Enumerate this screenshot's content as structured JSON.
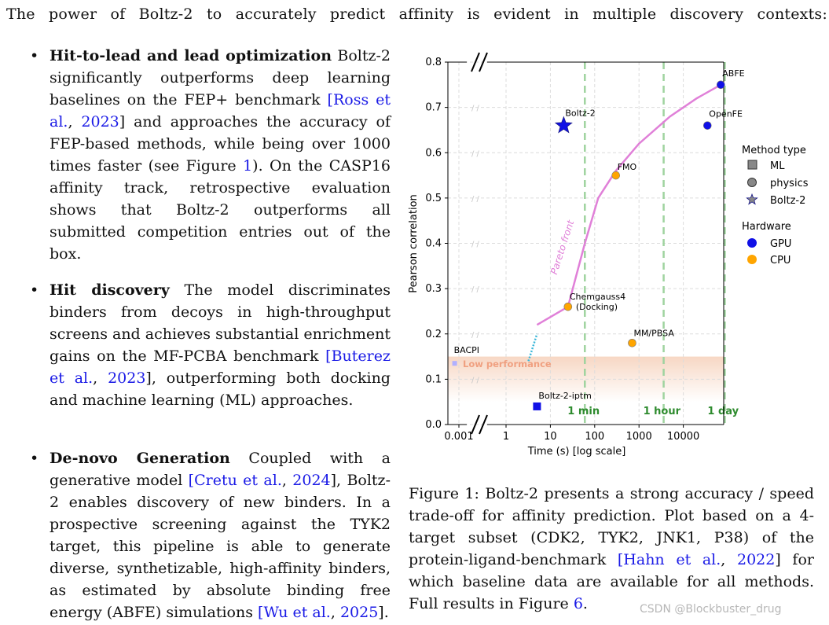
{
  "intro_text": "The power of Boltz-2 to accurately predict affinity is evident in multiple discovery contexts:",
  "bullets": [
    {
      "head": "Hit-to-lead and lead optimization",
      "body_before": " Boltz-2 significantly outperforms deep learning baselines on the FEP+ benchmark ",
      "cite1_open": "[",
      "cite1_author": "Ross et al.",
      "cite1_sep": ", ",
      "cite1_year": "2023",
      "cite1_close": "]",
      "body_mid": " and approaches the accuracy of FEP-based methods, while being over 1000 times faster (see Figure ",
      "fig_ref": "1",
      "body_after": "). On the CASP16 affinity track, retrospective evaluation shows that Boltz-2 outperforms all submitted competition entries out of the box."
    },
    {
      "head": "Hit discovery",
      "body_before": " The model discriminates binders from decoys in high-throughput screens and achieves substantial enrichment gains on the MF-PCBA benchmark ",
      "cite1_open": "[",
      "cite1_author": "Buterez et al.",
      "cite1_sep": ", ",
      "cite1_year": "2023",
      "cite1_close": "]",
      "body_after": ", outperforming both docking and machine learning (ML) approaches."
    },
    {
      "head": "De-novo Generation",
      "body_before": " Coupled with a generative model ",
      "cite1_open": "[",
      "cite1_author": "Cretu et al.",
      "cite1_sep": ", ",
      "cite1_year": "2024",
      "cite1_close": "]",
      "body_mid": ", Boltz-2 enables discovery of new binders.  In a prospective screening against the TYK2 target, this pipeline is able to generate diverse, synthetizable, high-affinity binders, as estimated by absolute binding free energy (ABFE) simulations ",
      "cite2_open": "[",
      "cite2_author": "Wu et al.",
      "cite2_sep": ", ",
      "cite2_year": "2025",
      "cite2_close": "]",
      "body_after": "."
    }
  ],
  "caption": {
    "label": "Figure 1:",
    "text_before": "  Boltz-2 presents a strong accuracy / speed trade-off for affinity prediction. Plot based on a 4-target subset (CDK2, TYK2, JNK1, P38) of the protein-ligand-benchmark ",
    "cite_open": "[",
    "cite_author": "Hahn et al.",
    "cite_sep": ", ",
    "cite_year": "2022",
    "cite_close": "]",
    "text_mid": " for which baseline data are available for all methods. Full results in Figure ",
    "fig_ref": "6",
    "text_after": "."
  },
  "watermark": "CSDN @Blockbuster_drug",
  "chart_data": {
    "type": "scatter",
    "xlabel": "Time (s) [log scale]",
    "ylabel": "Pearson correlation",
    "xscale": "log",
    "xticks": [
      "0.001",
      "1",
      "10",
      "100",
      "1000",
      "10000"
    ],
    "yticks": [
      "0.0",
      "0.1",
      "0.2",
      "0.3",
      "0.4",
      "0.5",
      "0.6",
      "0.7",
      "0.8"
    ],
    "ylim": [
      0,
      0.8
    ],
    "grid": true,
    "axis_break": true,
    "time_markers": [
      {
        "label": "1 min",
        "x": 60
      },
      {
        "label": "1 hour",
        "x": 3600
      },
      {
        "label": "1 day",
        "x": 86400
      }
    ],
    "low_performance": {
      "label": "Low performance",
      "y_max": 0.15
    },
    "pareto_label": "Pareto front",
    "points": [
      {
        "label": "Boltz-2",
        "x": 20,
        "y": 0.66,
        "type": "Boltz-2",
        "hardware": "GPU"
      },
      {
        "label": "ABFE",
        "x": 70000,
        "y": 0.75,
        "type": "physics",
        "hardware": "GPU"
      },
      {
        "label": "OpenFE",
        "x": 35000,
        "y": 0.66,
        "type": "physics",
        "hardware": "GPU"
      },
      {
        "label": "FMO",
        "x": 300,
        "y": 0.55,
        "type": "physics",
        "hardware": "CPU"
      },
      {
        "label": "Chemgauss4",
        "label2": "(Docking)",
        "x": 25,
        "y": 0.26,
        "type": "physics",
        "hardware": "CPU"
      },
      {
        "label": "MM/PBSA",
        "x": 700,
        "y": 0.18,
        "type": "physics",
        "hardware": "CPU"
      },
      {
        "label": "Boltz-2-iptm",
        "x": 5,
        "y": 0.04,
        "type": "ML",
        "hardware": "GPU"
      },
      {
        "label": "BACPI",
        "x": 0.0005,
        "y": 0.135,
        "type": "ML",
        "hardware": "GPU"
      }
    ],
    "legend": {
      "placement": "right",
      "method_title": "Method type",
      "method_items": [
        "ML",
        "physics",
        "Boltz-2"
      ],
      "hardware_title": "Hardware",
      "hardware_items": [
        "GPU",
        "CPU"
      ]
    },
    "colors": {
      "GPU": "#1010e6",
      "CPU": "#ffa500",
      "pareto": "#e080d8",
      "marker": "#3aa845",
      "low": "#f7d7c4"
    }
  }
}
